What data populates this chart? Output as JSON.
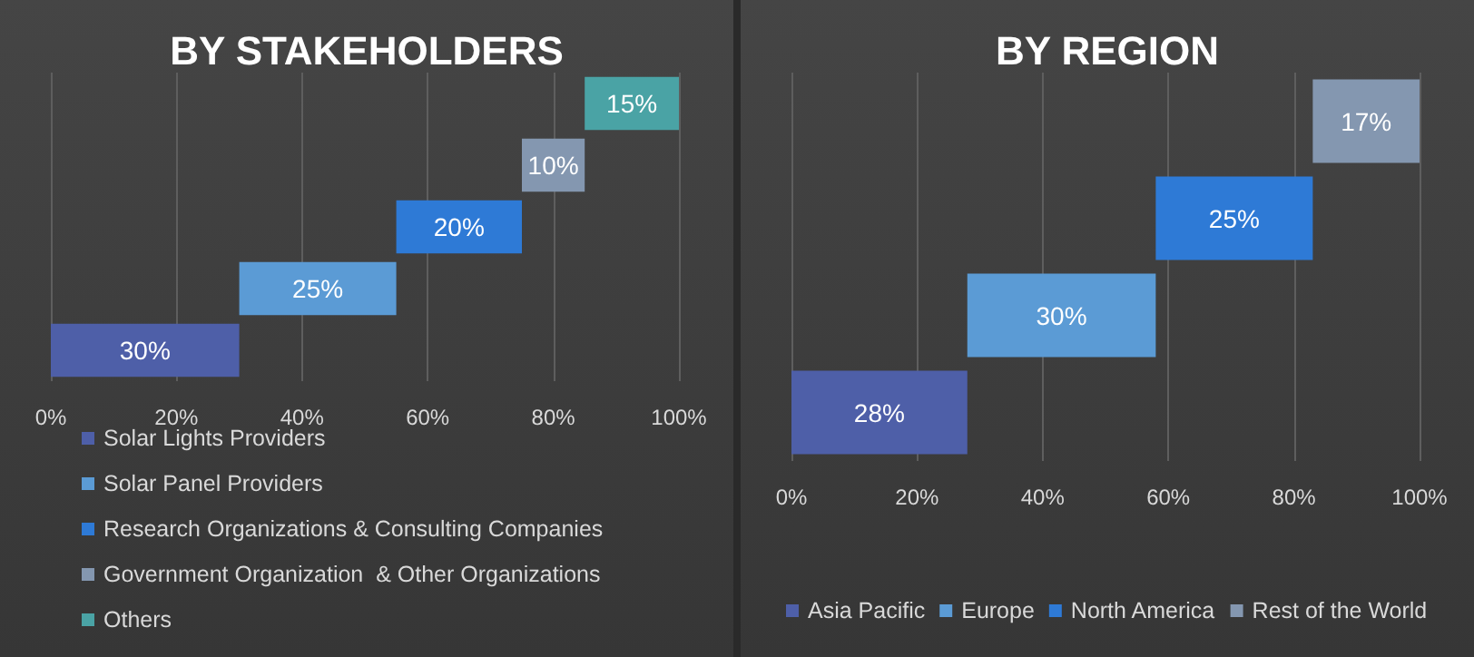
{
  "chart_data": [
    {
      "type": "bar",
      "title": "BY STAKEHOLDERS",
      "orientation": "horizontal",
      "categories": [
        null,
        null,
        null,
        null,
        null
      ],
      "xlim": [
        0,
        100
      ],
      "xticks": [
        {
          "value": 0,
          "label": "0%"
        },
        {
          "value": 20,
          "label": "20%"
        },
        {
          "value": 40,
          "label": "40%"
        },
        {
          "value": 60,
          "label": "60%"
        },
        {
          "value": 80,
          "label": "80%"
        },
        {
          "value": 100,
          "label": "100%"
        }
      ],
      "grid": "x",
      "legend": "bottom",
      "series": [
        {
          "name": "Solar Lights Providers",
          "color": "#4e5fa8",
          "values": [
            null,
            null,
            null,
            null,
            30
          ],
          "base": [
            null,
            null,
            null,
            null,
            0
          ],
          "value_labels": [
            null,
            null,
            null,
            null,
            "30%"
          ]
        },
        {
          "name": "Solar Panel Providers",
          "color": "#5b9bd5",
          "values": [
            null,
            null,
            null,
            25,
            null
          ],
          "base": [
            null,
            null,
            null,
            30,
            null
          ],
          "value_labels": [
            null,
            null,
            null,
            "25%",
            null
          ]
        },
        {
          "name": "Research Organizations & Consulting Companies",
          "color": "#2e7ad6",
          "values": [
            null,
            null,
            20,
            null,
            null
          ],
          "base": [
            null,
            null,
            55,
            null,
            null
          ],
          "value_labels": [
            null,
            null,
            "20%",
            null,
            null
          ]
        },
        {
          "name": "Government Organization  & Other Organizations",
          "color": "#8497b0",
          "values": [
            null,
            10,
            null,
            null,
            null
          ],
          "base": [
            null,
            75,
            null,
            null,
            null
          ],
          "value_labels": [
            null,
            "10%",
            null,
            null,
            null
          ]
        },
        {
          "name": "Others",
          "color": "#4aa3a5",
          "values": [
            15,
            null,
            null,
            null,
            null
          ],
          "base": [
            85,
            null,
            null,
            null,
            null
          ],
          "value_labels": [
            "15%",
            null,
            null,
            null,
            null
          ]
        }
      ]
    },
    {
      "type": "bar",
      "title": "BY REGION",
      "orientation": "horizontal",
      "categories": [
        null,
        null,
        null,
        null
      ],
      "xlim": [
        0,
        100
      ],
      "xticks": [
        {
          "value": 0,
          "label": "0%"
        },
        {
          "value": 20,
          "label": "20%"
        },
        {
          "value": 40,
          "label": "40%"
        },
        {
          "value": 60,
          "label": "60%"
        },
        {
          "value": 80,
          "label": "80%"
        },
        {
          "value": 100,
          "label": "100%"
        }
      ],
      "grid": "x",
      "legend": "bottom",
      "series": [
        {
          "name": "Asia Pacific",
          "color": "#4e5fa8",
          "values": [
            null,
            null,
            null,
            28
          ],
          "base": [
            null,
            null,
            null,
            0
          ],
          "value_labels": [
            null,
            null,
            null,
            "28%"
          ]
        },
        {
          "name": "Europe",
          "color": "#5b9bd5",
          "values": [
            null,
            null,
            30,
            null
          ],
          "base": [
            null,
            null,
            28,
            null
          ],
          "value_labels": [
            null,
            null,
            "30%",
            null
          ]
        },
        {
          "name": "North America",
          "color": "#2e7ad6",
          "values": [
            null,
            25,
            null,
            null
          ],
          "base": [
            null,
            58,
            null,
            null
          ],
          "value_labels": [
            null,
            "25%",
            null,
            null
          ]
        },
        {
          "name": "Rest of the World",
          "color": "#8497b0",
          "values": [
            17,
            null,
            null,
            null
          ],
          "base": [
            83,
            null,
            null,
            null
          ],
          "value_labels": [
            "17%",
            null,
            null,
            null
          ]
        }
      ]
    }
  ]
}
